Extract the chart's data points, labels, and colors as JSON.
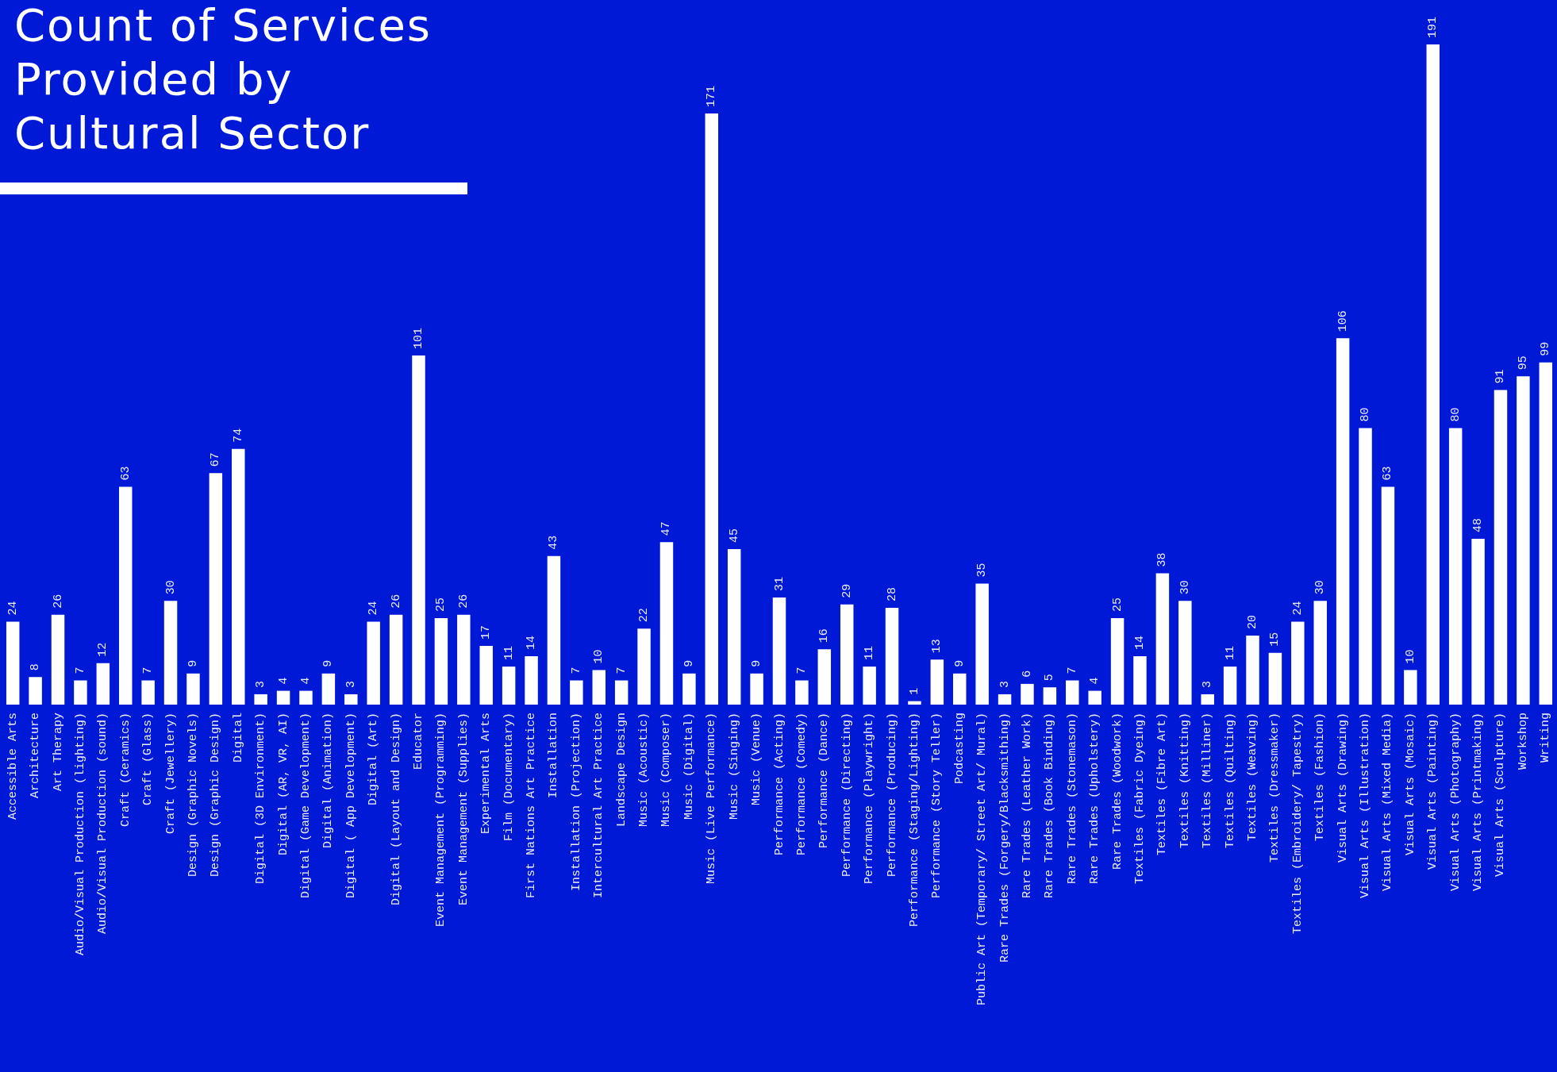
{
  "chart_data": {
    "type": "bar",
    "title": "Count of Services Provided by Cultural Sector",
    "categories": [
      "Accessible Arts",
      "Architecture",
      "Art Therapy",
      "Audio/Visual Production (lighting)",
      "Audio/Visual Production (sound)",
      "Craft (Ceramics)",
      "Craft (Glass)",
      "Craft (Jewellery)",
      "Design (Graphic Novels)",
      "Design (Graphic Design)",
      "Digital",
      "Digital (3D Environment)",
      "Digital (AR, VR, AI)",
      "Digital (Game Development)",
      "Digital (Animation)",
      "Digital ( App Development)",
      "Digital (Art)",
      "Digital (Layout and Design)",
      "Educator",
      "Event Management (Programming)",
      "Event Management (Supplies)",
      "Experimental Arts",
      "Film (Documentary)",
      "First Nations Art Practice",
      "Installation",
      "Installation (Projection)",
      "Intercultural Art Practice",
      "Landscape Design",
      "Music (Acoustic)",
      "Music (Composer)",
      "Music (Digital)",
      "Music (Live Performance)",
      "Music (Singing)",
      "Music (Venue)",
      "Performance (Acting)",
      "Performance (Comedy)",
      "Performance (Dance)",
      "Performance (Directing)",
      "Performance (Playwright)",
      "Performance (Producing)",
      "Performance (Staging/Lighting)",
      "Performance (Story Teller)",
      "Podcasting",
      "Public Art (Temporary/ Street Art/ Mural)",
      "Rare Trades (Forgery/Blacksmithing)",
      "Rare Trades (Leather Work)",
      "Rare Trades (Book Binding)",
      "Rare Trades (Stonemason)",
      "Rare Trades (Upholstery)",
      "Rare Trades (Woodwork)",
      "Textiles (Fabric Dyeing)",
      "Textiles (Fibre Art)",
      "Textiles (Knitting)",
      "Textiles (Milliner)",
      "Textiles (Quilting)",
      "Textiles (Weaving)",
      "Textiles (Dressmaker)",
      "Textiles (Embroidery/ Tapestry)",
      "Textiles (Fashion)",
      "Visual Arts (Drawing)",
      "Visual Arts (Illustration)",
      "Visual Arts (Mixed Media)",
      "Visual Arts (Mosaic)",
      "Visual Arts (Painting)",
      "Visual Arts (Photography)",
      "Visual Arts (Printmaking)",
      "Visual Arts (Sculpture)",
      "Workshop",
      "Writing"
    ],
    "values": [
      24,
      8,
      26,
      7,
      12,
      63,
      7,
      30,
      9,
      67,
      74,
      3,
      4,
      4,
      9,
      3,
      24,
      26,
      101,
      25,
      26,
      17,
      11,
      14,
      43,
      7,
      10,
      7,
      22,
      47,
      9,
      171,
      45,
      9,
      31,
      7,
      16,
      29,
      11,
      28,
      1,
      13,
      9,
      35,
      3,
      6,
      5,
      7,
      4,
      25,
      14,
      38,
      30,
      3,
      11,
      20,
      15,
      24,
      30,
      106,
      80,
      63,
      10,
      191,
      80,
      48,
      91,
      95,
      99
    ],
    "color": "#ffffff",
    "data_labels": true
  }
}
